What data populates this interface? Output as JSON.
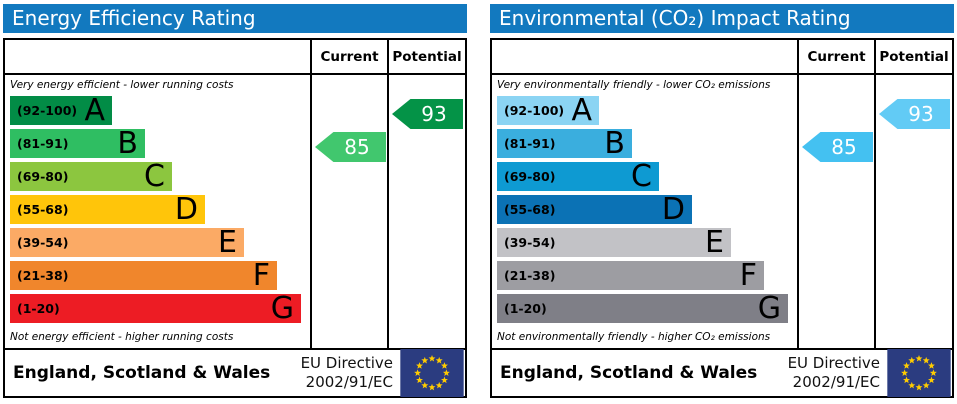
{
  "accent_color": "#1279bf",
  "eu_flag": {
    "blue": "#2b3c80",
    "star_yellow": "#ffcc00"
  },
  "chart_data": [
    {
      "type": "bar",
      "title": "Energy Efficiency Rating",
      "column_headers": [
        "Current",
        "Potential"
      ],
      "top_note": "Very energy efficient - lower running costs",
      "bottom_note": "Not energy efficient - higher running costs",
      "bands": [
        {
          "label": "(92-100)",
          "letter": "A",
          "min": 92,
          "max": 100,
          "color": "#028c46",
          "width_pct": 34
        },
        {
          "label": "(81-91)",
          "letter": "B",
          "min": 81,
          "max": 91,
          "color": "#2fbe62",
          "width_pct": 45
        },
        {
          "label": "(69-80)",
          "letter": "C",
          "min": 69,
          "max": 80,
          "color": "#8cc63f",
          "width_pct": 54
        },
        {
          "label": "(55-68)",
          "letter": "D",
          "min": 55,
          "max": 68,
          "color": "#ffc50a",
          "width_pct": 65
        },
        {
          "label": "(39-54)",
          "letter": "E",
          "min": 39,
          "max": 54,
          "color": "#fbaa65",
          "width_pct": 78
        },
        {
          "label": "(21-38)",
          "letter": "F",
          "min": 21,
          "max": 38,
          "color": "#f0862c",
          "width_pct": 89
        },
        {
          "label": "(1-20)",
          "letter": "G",
          "min": 1,
          "max": 20,
          "color": "#ed1c24",
          "width_pct": 97
        }
      ],
      "current": {
        "value": 85,
        "band": "B",
        "band_index": 1,
        "color": "#41c76e"
      },
      "potential": {
        "value": 93,
        "band": "A",
        "band_index": 0,
        "color": "#049347"
      },
      "footer": {
        "region": "England, Scotland & Wales",
        "directive": [
          "EU Directive",
          "2002/91/EC"
        ]
      }
    },
    {
      "type": "bar",
      "title": "Environmental (CO₂) Impact Rating",
      "column_headers": [
        "Current",
        "Potential"
      ],
      "top_note": "Very environmentally friendly - lower CO₂ emissions",
      "bottom_note": "Not environmentally friendly - higher CO₂ emissions",
      "bands": [
        {
          "label": "(92-100)",
          "letter": "A",
          "min": 92,
          "max": 100,
          "color": "#8bd4f3",
          "width_pct": 34
        },
        {
          "label": "(81-91)",
          "letter": "B",
          "min": 81,
          "max": 91,
          "color": "#3aaede",
          "width_pct": 45
        },
        {
          "label": "(69-80)",
          "letter": "C",
          "min": 69,
          "max": 80,
          "color": "#0e9ad2",
          "width_pct": 54
        },
        {
          "label": "(55-68)",
          "letter": "D",
          "min": 55,
          "max": 68,
          "color": "#0b72b5",
          "width_pct": 65
        },
        {
          "label": "(39-54)",
          "letter": "E",
          "min": 39,
          "max": 54,
          "color": "#c2c2c6",
          "width_pct": 78
        },
        {
          "label": "(21-38)",
          "letter": "F",
          "min": 21,
          "max": 38,
          "color": "#9d9da2",
          "width_pct": 89
        },
        {
          "label": "(1-20)",
          "letter": "G",
          "min": 1,
          "max": 20,
          "color": "#7f7f87",
          "width_pct": 97
        }
      ],
      "current": {
        "value": 85,
        "band": "B",
        "band_index": 1,
        "color": "#44c1f1"
      },
      "potential": {
        "value": 93,
        "band": "A",
        "band_index": 0,
        "color": "#62cbf5"
      },
      "footer": {
        "region": "England, Scotland & Wales",
        "directive": [
          "EU Directive",
          "2002/91/EC"
        ]
      }
    }
  ]
}
